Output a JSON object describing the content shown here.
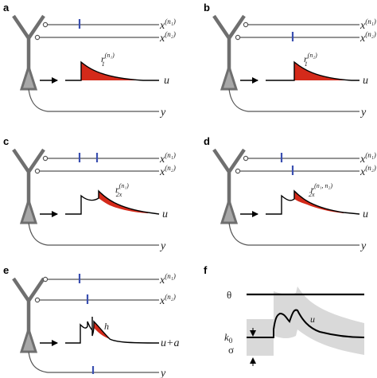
{
  "panels": {
    "a": {
      "letter": "a",
      "x1": "x",
      "x1_sup": "(n₁)",
      "x2": "x",
      "x2_sup": "(n₂)",
      "r": "r",
      "r_sub": "1",
      "r_sup": "(n₁)",
      "u": "u",
      "y": "y"
    },
    "b": {
      "letter": "b",
      "x1": "x",
      "x1_sup": "(n₁)",
      "x2": "x",
      "x2_sup": "(n₂)",
      "r": "r",
      "r_sub": "1",
      "r_sup": "(n₂)",
      "u": "u",
      "y": "y"
    },
    "c": {
      "letter": "c",
      "x1": "x",
      "x1_sup": "(n₁)",
      "x2": "x",
      "x2_sup": "(n₂)",
      "r": "r",
      "r_sub": "2x",
      "r_sup": "(n₁)",
      "u": "u",
      "y": "y"
    },
    "d": {
      "letter": "d",
      "x1": "x",
      "x1_sup": "(n₁)",
      "x2": "x",
      "x2_sup": "(n₂)",
      "r": "r",
      "r_sub": "2x",
      "r_sup": "(n₁, n₂)",
      "u": "u",
      "y": "y"
    },
    "e": {
      "letter": "e",
      "x1": "x",
      "x1_sup": "(n₁)",
      "x2": "x",
      "x2_sup": "(n₂)",
      "h": "h",
      "u": "u+a",
      "y": "y"
    },
    "f": {
      "letter": "f",
      "theta": "θ",
      "u": "u",
      "k0": "k",
      "k0_sub": "0",
      "sigma": "σ"
    }
  },
  "colors": {
    "neuron": "#6f6f6f",
    "soma": "#a8a8a8",
    "spike": "#3a4fb0",
    "psp_fill": "#d42a1a",
    "band": "#d9d9d9",
    "line": "#000000",
    "axon": "#555555"
  }
}
